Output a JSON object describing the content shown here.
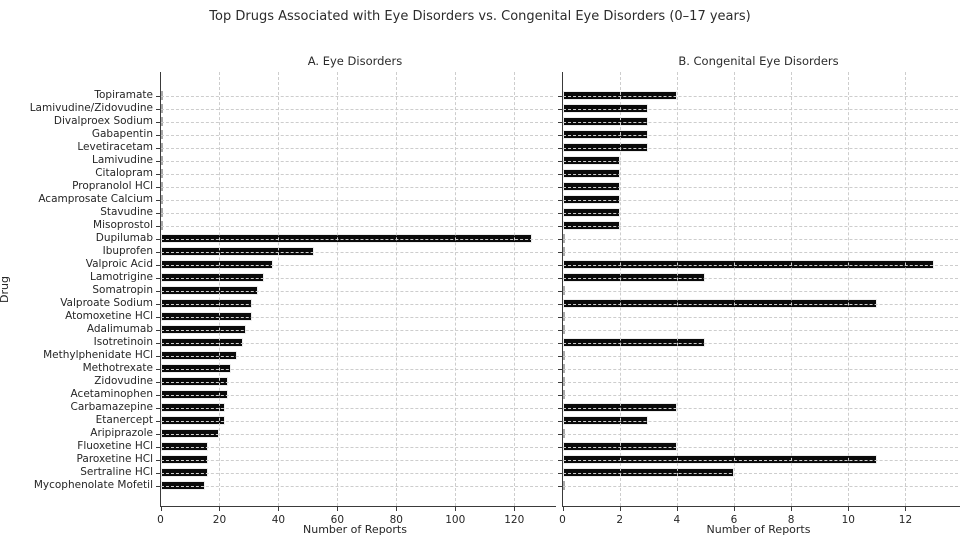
{
  "chart_data": {
    "type": "bar",
    "orientation": "horizontal",
    "title": "Top Drugs Associated with Eye Disorders vs. Congenital Eye Disorders (0–17 years)",
    "ylabel": "Drug",
    "xlabel": "Number of Reports",
    "grid": true,
    "legend": false,
    "bar_color": "#0a0a0a",
    "categories": [
      "Topiramate",
      "Lamivudine/Zidovudine",
      "Divalproex Sodium",
      "Gabapentin",
      "Levetiracetam",
      "Lamivudine",
      "Citalopram",
      "Propranolol HCl",
      "Acamprosate Calcium",
      "Stavudine",
      "Misoprostol",
      "Dupilumab",
      "Ibuprofen",
      "Valproic Acid",
      "Lamotrigine",
      "Somatropin",
      "Valproate Sodium",
      "Atomoxetine HCl",
      "Adalimumab",
      "Isotretinoin",
      "Methylphenidate HCl",
      "Methotrexate",
      "Zidovudine",
      "Acetaminophen",
      "Carbamazepine",
      "Etanercept",
      "Aripiprazole",
      "Fluoxetine HCl",
      "Paroxetine HCl",
      "Sertraline HCl",
      "Mycophenolate Mofetil"
    ],
    "panels": [
      {
        "label": "A. Eye Disorders",
        "xticks": [
          0,
          20,
          40,
          60,
          80,
          100,
          120
        ],
        "xmax": 132.3,
        "values": [
          0,
          0,
          0,
          0,
          0,
          0,
          0,
          0,
          0,
          0,
          0,
          126,
          52,
          38,
          35,
          33,
          31,
          31,
          29,
          28,
          26,
          24,
          23,
          23,
          22,
          22,
          20,
          16,
          16,
          16,
          15
        ]
      },
      {
        "label": "B. Congenital Eye Disorders",
        "xticks": [
          0,
          2,
          4,
          6,
          8,
          10,
          12
        ],
        "xmax": 13.75,
        "values": [
          4,
          3,
          3,
          3,
          3,
          2,
          2,
          2,
          2,
          2,
          2,
          0,
          0,
          13,
          5,
          0,
          11,
          0,
          0,
          5,
          0,
          0,
          0,
          0,
          4,
          3,
          0,
          4,
          11,
          6,
          0
        ]
      }
    ]
  }
}
